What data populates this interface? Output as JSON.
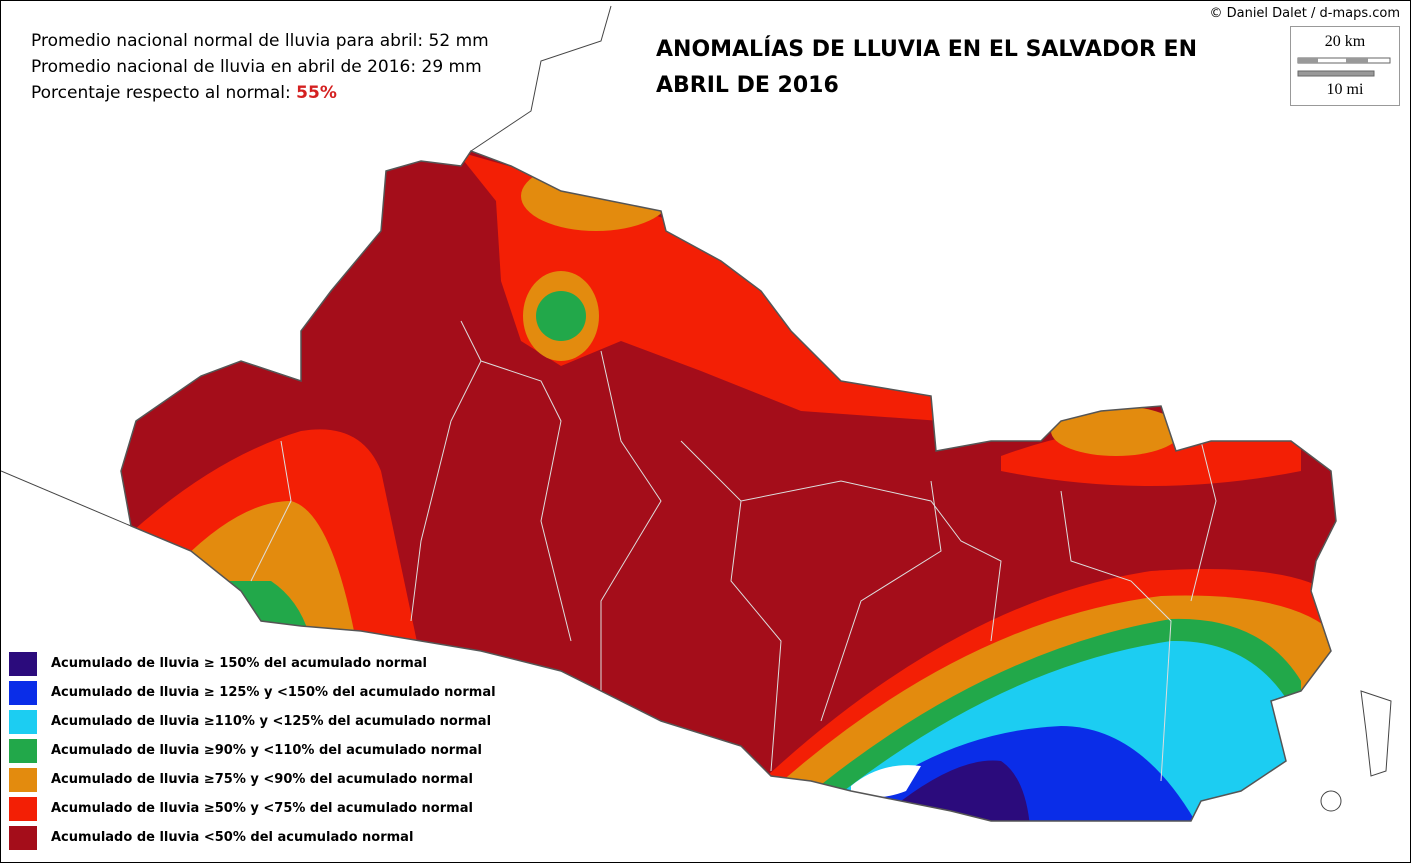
{
  "credit": "© Daniel Dalet / d-maps.com",
  "info": {
    "normal": "Promedio nacional normal de lluvia para abril: 52 mm",
    "actual": "Promedio nacional de lluvia en abril de 2016: 29 mm",
    "percent_label": "Porcentaje respecto al normal:",
    "percent_value": "55%"
  },
  "title": [
    "ANOMALÍAS DE LLUVIA EN EL SALVADOR EN",
    "ABRIL DE 2016"
  ],
  "scale": {
    "km": "20 km",
    "mi": "10 mi"
  },
  "legend": [
    {
      "label": "Acumulado de lluvia ≥ 150% del acumulado normal",
      "color": "#2b0b7c"
    },
    {
      "label": "Acumulado de lluvia ≥ 125% y <150% del acumulado normal",
      "color": "#0a2de8"
    },
    {
      "label": "Acumulado de lluvia ≥110% y  <125% del acumulado normal",
      "color": "#1ccdf2"
    },
    {
      "label": "Acumulado de lluvia  ≥90% y <110% del acumulado normal",
      "color": "#22a84a"
    },
    {
      "label": "Acumulado de lluvia ≥75% y <90% del acumulado normal",
      "color": "#e38b0e"
    },
    {
      "label": "Acumulado de lluvia ≥50% y <75% del acumulado normal",
      "color": "#f31f05"
    },
    {
      "label": "Acumulado de lluvia  <50% del acumulado normal",
      "color": "#a40d1a"
    }
  ]
}
